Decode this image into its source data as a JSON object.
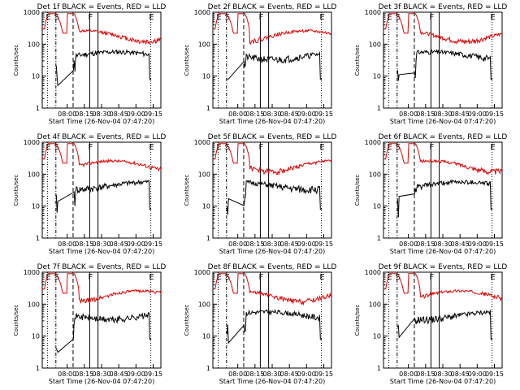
{
  "chart_data": [
    {
      "type": "line",
      "title": "Det 1f BLACK = Events, RED = LLD",
      "series": [
        {
          "color": "#000000",
          "seed": 11
        },
        {
          "color": "#e00000",
          "seed": 12
        }
      ]
    },
    {
      "type": "line",
      "title": "Det 2f BLACK = Events, RED = LLD",
      "series": [
        {
          "color": "#000000",
          "seed": 21
        },
        {
          "color": "#e00000",
          "seed": 22
        }
      ]
    },
    {
      "type": "line",
      "title": "Det 3f BLACK = Events, RED = LLD",
      "series": [
        {
          "color": "#000000",
          "seed": 31
        },
        {
          "color": "#e00000",
          "seed": 32
        }
      ]
    },
    {
      "type": "line",
      "title": "Det 4f BLACK = Events, RED = LLD",
      "series": [
        {
          "color": "#000000",
          "seed": 41
        },
        {
          "color": "#e00000",
          "seed": 42
        }
      ]
    },
    {
      "type": "line",
      "title": "Det 5f BLACK = Events, RED = LLD",
      "series": [
        {
          "color": "#000000",
          "seed": 51
        },
        {
          "color": "#e00000",
          "seed": 52
        }
      ]
    },
    {
      "type": "line",
      "title": "Det 6f BLACK = Events, RED = LLD",
      "series": [
        {
          "color": "#000000",
          "seed": 61
        },
        {
          "color": "#e00000",
          "seed": 62
        }
      ]
    },
    {
      "type": "line",
      "title": "Det 7f BLACK = Events, RED = LLD",
      "series": [
        {
          "color": "#000000",
          "seed": 71
        },
        {
          "color": "#e00000",
          "seed": 72
        }
      ]
    },
    {
      "type": "line",
      "title": "Det 8f BLACK = Events, RED = LLD",
      "series": [
        {
          "color": "#000000",
          "seed": 81
        },
        {
          "color": "#e00000",
          "seed": 82
        }
      ]
    },
    {
      "type": "line",
      "title": "Det 9f BLACK = Events, RED = LLD",
      "series": [
        {
          "color": "#000000",
          "seed": 91
        },
        {
          "color": "#e00000",
          "seed": 92
        }
      ]
    }
  ],
  "shared_axes": {
    "xlabel": "Start Time (26-Nov-04 07:47:20)",
    "ylabel": "Counts/sec",
    "yscale": "log",
    "ylim": [
      1,
      1000
    ],
    "x_tick_labels": [
      "08:00",
      "08:15",
      "08:30",
      "08:45",
      "09:00",
      "09:15"
    ],
    "y_tick_labels": [
      "1",
      "10",
      "100",
      "1000"
    ]
  },
  "markers": [
    {
      "label": "E",
      "style": "dotted"
    },
    {
      "label": "S",
      "style": "dashdot"
    },
    {
      "label": "",
      "style": "dashed"
    },
    {
      "label": "F",
      "style": "solid"
    },
    {
      "label": "",
      "style": "solid"
    },
    {
      "label": "E",
      "style": "dotted"
    }
  ]
}
